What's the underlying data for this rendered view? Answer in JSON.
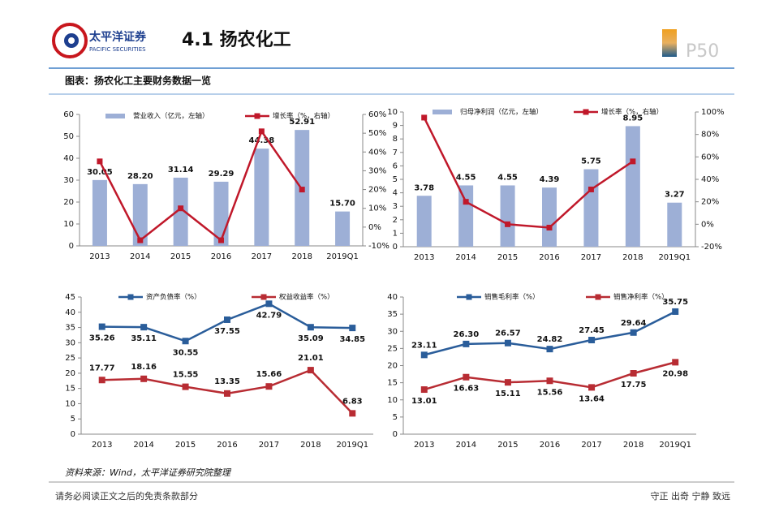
{
  "header": {
    "logo_name": "太平洋证券",
    "logo_sub": "PACIFIC SECURITIES",
    "title": "4.1 扬农化工",
    "page": "P50"
  },
  "caption": "图表：扬农化工主要财务数据一览",
  "chart_data": [
    {
      "type": "combo",
      "categories": [
        "2013",
        "2014",
        "2015",
        "2016",
        "2017",
        "2018",
        "2019Q1"
      ],
      "series": [
        {
          "name": "营业收入（亿元，左轴）",
          "color": "#9dafd6",
          "kind": "bar",
          "values": [
            30.05,
            28.2,
            31.14,
            29.29,
            44.38,
            52.91,
            15.7
          ],
          "value_labels": [
            "30.05",
            "28.20",
            "31.14",
            "29.29",
            "44.38",
            "52.91",
            "15.70"
          ]
        },
        {
          "name": "增长率（%，右轴）",
          "color": "#c0182a",
          "kind": "line",
          "axis": "y2",
          "values": [
            35,
            -7,
            10,
            -7,
            51,
            20,
            null
          ]
        }
      ],
      "ylim": [
        0,
        60
      ],
      "yticks": [
        0,
        10,
        20,
        30,
        40,
        50,
        60
      ],
      "y2lim": [
        -10,
        60
      ],
      "y2ticks": [
        {
          "value": -10,
          "label": "-10%"
        },
        {
          "value": 0,
          "label": "0%"
        },
        {
          "value": 10,
          "label": "10%"
        },
        {
          "value": 20,
          "label": "20%"
        },
        {
          "value": 30,
          "label": "30%"
        },
        {
          "value": 40,
          "label": "40%"
        },
        {
          "value": 50,
          "label": "50%"
        },
        {
          "value": 60,
          "label": "60%"
        }
      ]
    },
    {
      "type": "combo",
      "categories": [
        "2013",
        "2014",
        "2015",
        "2016",
        "2017",
        "2018",
        "2019Q1"
      ],
      "series": [
        {
          "name": "归母净利润（亿元，左轴）",
          "color": "#9dafd6",
          "kind": "bar",
          "values": [
            3.78,
            4.55,
            4.55,
            4.39,
            5.75,
            8.95,
            3.27
          ]
        },
        {
          "name": "增长率（%，右轴）",
          "color": "#c0182a",
          "kind": "line",
          "axis": "y2",
          "values": [
            95,
            20,
            0,
            -3,
            31,
            56,
            null
          ]
        }
      ],
      "ylim": [
        0,
        10
      ],
      "yticks": [
        0,
        1,
        2,
        3,
        4,
        5,
        6,
        7,
        8,
        9,
        10
      ],
      "y2lim": [
        -20,
        100
      ],
      "y2ticks": [
        {
          "value": -20,
          "label": "-20%"
        },
        {
          "value": 0,
          "label": "0%"
        },
        {
          "value": 20,
          "label": "20%"
        },
        {
          "value": 40,
          "label": "40%"
        },
        {
          "value": 60,
          "label": "60%"
        },
        {
          "value": 80,
          "label": "80%"
        },
        {
          "value": 100,
          "label": "100%"
        }
      ]
    },
    {
      "type": "line",
      "categories": [
        "2013",
        "2014",
        "2015",
        "2016",
        "2017",
        "2018",
        "2019Q1"
      ],
      "series": [
        {
          "name": "资产负债率（%）",
          "color": "#2a5d9a",
          "values": [
            35.26,
            35.11,
            30.55,
            37.55,
            42.79,
            35.09,
            34.85
          ]
        },
        {
          "name": "权益收益率（%）",
          "color": "#b82c33",
          "values": [
            17.77,
            18.16,
            15.55,
            13.35,
            15.66,
            21.01,
            6.83
          ]
        }
      ],
      "ylim": [
        0,
        45
      ],
      "yticks": [
        0,
        5,
        10,
        15,
        20,
        25,
        30,
        35,
        40,
        45
      ]
    },
    {
      "type": "line",
      "categories": [
        "2013",
        "2014",
        "2015",
        "2016",
        "2017",
        "2018",
        "2019Q1"
      ],
      "series": [
        {
          "name": "销售毛利率（%）",
          "color": "#2a5d9a",
          "values": [
            23.11,
            26.3,
            26.57,
            24.82,
            27.45,
            29.64,
            35.75
          ],
          "value_labels": [
            "23.11",
            "26.30",
            "26.57",
            "24.82",
            "27.45",
            "29.64",
            "35.75"
          ]
        },
        {
          "name": "销售净利率（%）",
          "color": "#b82c33",
          "values": [
            13.01,
            16.63,
            15.11,
            15.56,
            13.64,
            17.75,
            20.98
          ]
        }
      ],
      "ylim": [
        0,
        40
      ],
      "yticks": [
        0,
        5,
        10,
        15,
        20,
        25,
        30,
        35,
        40
      ]
    }
  ],
  "source": "资料来源：Wind，太平洋证券研究院整理",
  "footer": {
    "left": "请务必阅读正文之后的免责条款部分",
    "right": "守正 出奇 宁静 致远"
  }
}
